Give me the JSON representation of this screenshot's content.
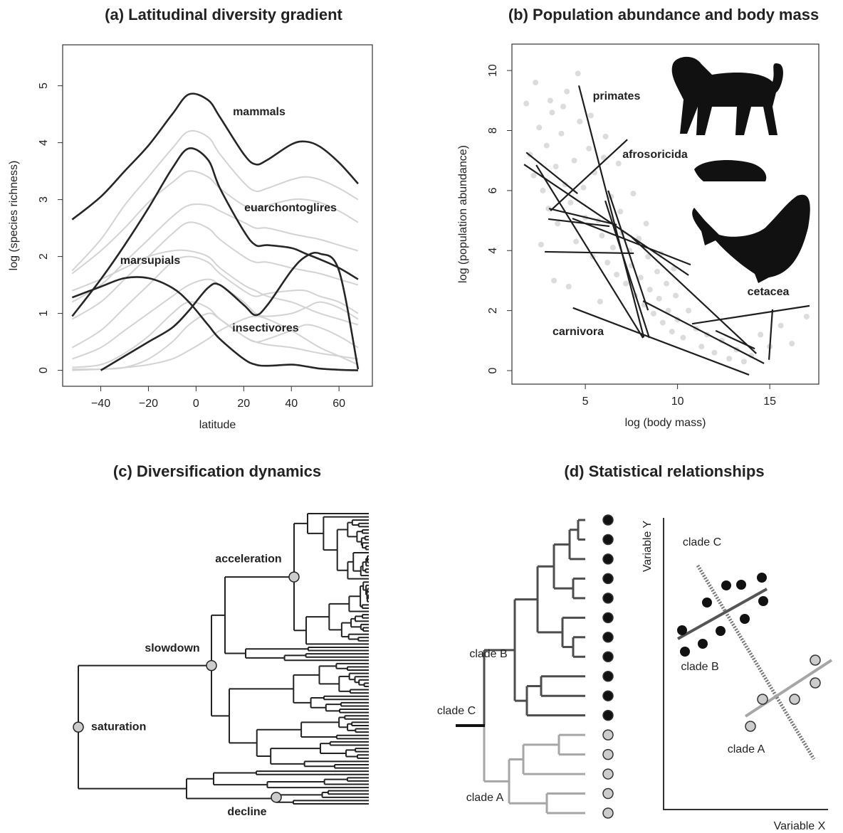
{
  "chart_data": [
    {
      "type": "line",
      "title": "(a) Latitudinal diversity gradient",
      "x_label": "latitude",
      "y_label": "log (species richness)",
      "x": [
        -52,
        -40,
        -30,
        -20,
        -10,
        -3,
        5,
        10,
        20,
        25,
        30,
        40,
        46,
        52,
        60,
        68
      ],
      "xlim": [
        -56,
        74
      ],
      "ylim": [
        -0.28,
        5.72
      ],
      "xticks": [
        {
          "value": -40,
          "label": "−40"
        },
        {
          "value": -20,
          "label": "−20"
        },
        0,
        20,
        40,
        60
      ],
      "yticks": [
        0,
        1,
        2,
        3,
        4,
        5
      ],
      "series": [
        {
          "color": "#d3d3d3",
          "values": [
            1.75,
            2.3,
            2.9,
            3.4,
            3.9,
            4.2,
            4.1,
            3.8,
            3.3,
            3.15,
            3.2,
            3.35,
            3.4,
            3.35,
            3.2,
            3.0
          ]
        },
        {
          "color": "#d3d3d3",
          "values": [
            1.7,
            2.1,
            2.5,
            2.95,
            3.3,
            3.5,
            3.4,
            3.2,
            2.9,
            2.85,
            2.9,
            3.0,
            3.0,
            2.95,
            2.8,
            2.6
          ]
        },
        {
          "color": "#d3d3d3",
          "values": [
            1.2,
            1.5,
            1.9,
            2.3,
            2.7,
            2.9,
            2.9,
            2.8,
            2.6,
            2.5,
            2.5,
            2.4,
            2.35,
            2.3,
            2.2,
            2.1
          ]
        },
        {
          "color": "#d3d3d3",
          "values": [
            0.9,
            1.2,
            1.6,
            2.0,
            2.4,
            2.6,
            2.5,
            2.3,
            2.0,
            1.9,
            1.9,
            1.8,
            1.75,
            1.7,
            1.6,
            1.5
          ]
        },
        {
          "color": "#d3d3d3",
          "values": [
            0.4,
            0.7,
            1.1,
            1.5,
            1.9,
            2.0,
            1.9,
            1.7,
            1.4,
            1.3,
            1.35,
            1.4,
            1.4,
            1.3,
            1.2,
            1.0
          ]
        },
        {
          "color": "#d3d3d3",
          "values": [
            0.2,
            0.4,
            0.7,
            1.0,
            1.3,
            1.5,
            1.6,
            1.5,
            1.2,
            1.0,
            0.95,
            1.0,
            1.1,
            1.2,
            1.1,
            0.9
          ]
        },
        {
          "color": "#d3d3d3",
          "values": [
            0.05,
            0.1,
            0.3,
            0.6,
            1.0,
            1.2,
            1.1,
            0.9,
            0.6,
            0.5,
            0.45,
            0.4,
            0.35,
            0.3,
            0.25,
            0.2
          ]
        },
        {
          "color": "#d3d3d3",
          "values": [
            0,
            0.02,
            0.05,
            0.2,
            0.5,
            0.8,
            1.0,
            0.9,
            0.6,
            0.5,
            0.55,
            0.7,
            0.8,
            0.75,
            0.6,
            0.4
          ]
        },
        {
          "color": "#d3d3d3",
          "values": [
            0.02,
            0.02,
            0.05,
            0.1,
            0.2,
            0.35,
            0.55,
            0.7,
            0.9,
            0.95,
            0.9,
            0.7,
            0.55,
            0.4,
            0.25,
            0.1
          ]
        },
        {
          "color": "#d3d3d3",
          "values": [
            1.4,
            1.6,
            1.8,
            2.0,
            2.1,
            2.1,
            2.0,
            1.8,
            1.5,
            1.4,
            1.3,
            1.2,
            1.1,
            1.0,
            0.9,
            0.8
          ]
        },
        {
          "name": "mammals",
          "color": "#262626",
          "values": [
            2.65,
            3.05,
            3.5,
            3.95,
            4.5,
            4.85,
            4.75,
            4.45,
            3.8,
            3.62,
            3.7,
            3.97,
            4.02,
            3.93,
            3.65,
            3.28
          ]
        },
        {
          "name": "euarchontoglires",
          "color": "#262626",
          "values": [
            0.95,
            1.6,
            2.2,
            2.85,
            3.55,
            3.9,
            3.7,
            3.2,
            2.45,
            2.2,
            2.2,
            2.15,
            2.05,
            1.95,
            1.8,
            1.6
          ]
        },
        {
          "name": "marsupials",
          "color": "#262626",
          "values": [
            1.28,
            1.47,
            1.62,
            1.62,
            1.45,
            1.2,
            0.8,
            0.55,
            0.2,
            0.1,
            0.08,
            0.1,
            0.07,
            0.03,
            0.01,
            0
          ]
        },
        {
          "name": "insectivores",
          "color": "#262626",
          "values": [
            null,
            0,
            0.25,
            0.5,
            0.75,
            1.05,
            1.45,
            1.5,
            1.15,
            0.97,
            1.15,
            1.75,
            2.0,
            2.05,
            1.75,
            0.02
          ]
        }
      ]
    },
    {
      "type": "scatter",
      "title": "(b) Population abundance and body mass",
      "x_label": "log (body mass)",
      "y_label": "log (population abundance)",
      "xlim": [
        1.02,
        17.66
      ],
      "ylim": [
        -0.45,
        10.88
      ],
      "xticks": [
        5,
        10,
        15
      ],
      "yticks": [
        0,
        2,
        4,
        6,
        8,
        10
      ],
      "points": {
        "color": "#dcdcdc",
        "x": [
          1.8,
          2.0,
          2.2,
          2.5,
          2.7,
          2.9,
          3.0,
          3.2,
          3.4,
          3.5,
          3.7,
          3.9,
          4.0,
          4.2,
          4.4,
          4.5,
          4.7,
          4.9,
          5.0,
          5.2,
          5.4,
          5.5,
          5.7,
          5.9,
          6.0,
          6.2,
          6.4,
          6.5,
          6.7,
          6.9,
          7.0,
          7.2,
          7.4,
          7.5,
          7.7,
          7.9,
          8.0,
          8.2,
          8.4,
          8.5,
          8.7,
          8.9,
          9.0,
          9.2,
          9.4,
          9.5,
          9.7,
          9.9,
          10.0,
          10.3,
          10.6,
          11.0,
          11.3,
          11.6,
          12.0,
          12.4,
          12.8,
          13.2,
          13.6,
          14.0,
          14.5,
          15.0,
          15.6,
          16.2,
          17.0,
          2.3,
          3.1,
          3.8,
          4.6,
          5.3,
          6.1,
          6.8,
          7.6,
          8.3,
          9.1,
          9.8,
          4.1,
          5.8,
          3.3,
          2.6
        ],
        "values": [
          8.9,
          7.2,
          6.5,
          8.1,
          6.0,
          7.5,
          5.4,
          8.6,
          6.8,
          4.9,
          7.9,
          6.2,
          9.3,
          5.6,
          7.0,
          4.3,
          8.3,
          6.1,
          5.1,
          7.4,
          3.8,
          6.6,
          5.0,
          4.5,
          7.1,
          3.6,
          5.8,
          4.1,
          3.2,
          5.3,
          4.6,
          2.9,
          4.0,
          3.5,
          2.5,
          4.4,
          3.1,
          2.2,
          3.8,
          2.7,
          1.9,
          3.3,
          2.4,
          1.6,
          2.9,
          2.0,
          1.3,
          2.5,
          1.7,
          1.1,
          2.0,
          1.4,
          0.8,
          1.2,
          0.6,
          1.0,
          0.4,
          0.7,
          0.3,
          0.5,
          1.2,
          0.8,
          1.5,
          0.9,
          1.8,
          9.6,
          9.0,
          8.8,
          9.9,
          8.5,
          7.8,
          6.9,
          5.9,
          4.9,
          3.9,
          3.4,
          2.8,
          2.3,
          3.0,
          4.2
        ]
      },
      "lines": {
        "color": "#1e1e1e",
        "x": [
          [
            4.65,
            8.17
          ],
          [
            3.11,
            7.28
          ],
          [
            1.8,
            4.58
          ],
          [
            1.68,
            10.6
          ],
          [
            2.34,
            8.13
          ],
          [
            2.8,
            7.63
          ],
          [
            3.03,
            6.7
          ],
          [
            4.3,
            10.71
          ],
          [
            6.08,
            8.47
          ],
          [
            4.33,
            13.88
          ],
          [
            6.24,
            8.4
          ],
          [
            8.13,
            14.69
          ],
          [
            10.79,
            17.16
          ],
          [
            15.15,
            14.96
          ],
          [
            7.43,
            14.27
          ],
          [
            2.99,
            6.31
          ],
          [
            12.07,
            14.19
          ]
        ],
        "values": [
          [
            9.5,
            1.11
          ],
          [
            5.33,
            7.7
          ],
          [
            7.27,
            5.9
          ],
          [
            6.87,
            3.18
          ],
          [
            6.85,
            1.09
          ],
          [
            3.96,
            3.91
          ],
          [
            5.4,
            4.86
          ],
          [
            5.07,
            3.53
          ],
          [
            5.66,
            1.09
          ],
          [
            2.09,
            -0.14
          ],
          [
            6.0,
            2.01
          ],
          [
            2.32,
            0.24
          ],
          [
            1.56,
            2.16
          ],
          [
            2.04,
            0.36
          ],
          [
            4.5,
            0.57
          ],
          [
            5.05,
            4.81
          ],
          [
            1.33,
            0.73
          ]
        ]
      },
      "annotations": [
        "primates",
        "afrosoricida",
        "cetacea",
        "carnivora"
      ]
    }
  ],
  "diagrams": [
    {
      "title": "(c) Diversification dynamics",
      "labels": [
        "saturation",
        "slowdown",
        "acceleration",
        "decline"
      ]
    },
    {
      "title": "(d) Statistical relationships",
      "tree_labels": [
        "clade C",
        "clade B",
        "clade A"
      ],
      "plot_labels": [
        "clade C",
        "clade B",
        "clade A"
      ],
      "x_label": "Variable X",
      "y_label": "Variable Y"
    }
  ]
}
